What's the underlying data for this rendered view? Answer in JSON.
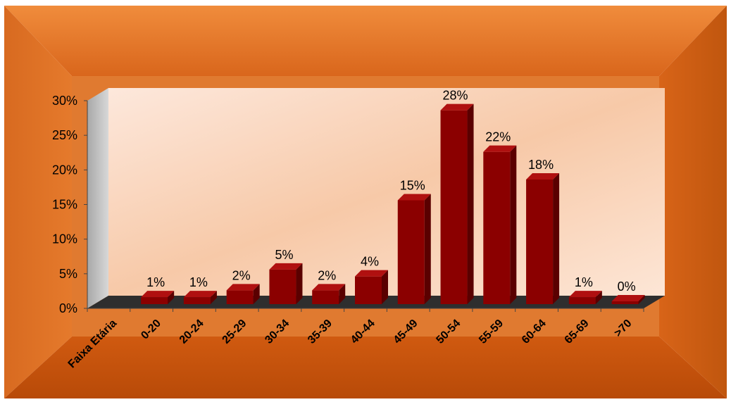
{
  "chart_data": {
    "type": "bar",
    "title": "",
    "xlabel": "Faixa Etária",
    "ylabel": "",
    "categories": [
      "0-20",
      "20-24",
      "25-29",
      "30-34",
      "35-39",
      "40-44",
      "45-49",
      "50-54",
      "55-59",
      "60-64",
      "65-69",
      ">70"
    ],
    "values": [
      1,
      1,
      2,
      5,
      2,
      4,
      15,
      28,
      22,
      18,
      1,
      0
    ],
    "value_labels": [
      "1%",
      "1%",
      "2%",
      "5%",
      "2%",
      "4%",
      "15%",
      "28%",
      "22%",
      "18%",
      "1%",
      "0%"
    ],
    "ylim": [
      0,
      30
    ],
    "y_ticks": [
      0,
      5,
      10,
      15,
      20,
      25,
      30
    ],
    "y_tick_labels": [
      "0%",
      "5%",
      "10%",
      "15%",
      "20%",
      "25%",
      "30%"
    ],
    "grid": false,
    "legend": "none",
    "style": "3d-column",
    "colors": {
      "bar_front": "#8b0000",
      "bar_top": "#b01010",
      "bar_side": "#5a0000",
      "frame": "#d86a1e",
      "floor": "#2e2e2e",
      "wall_left": "#c0c0c0"
    }
  }
}
